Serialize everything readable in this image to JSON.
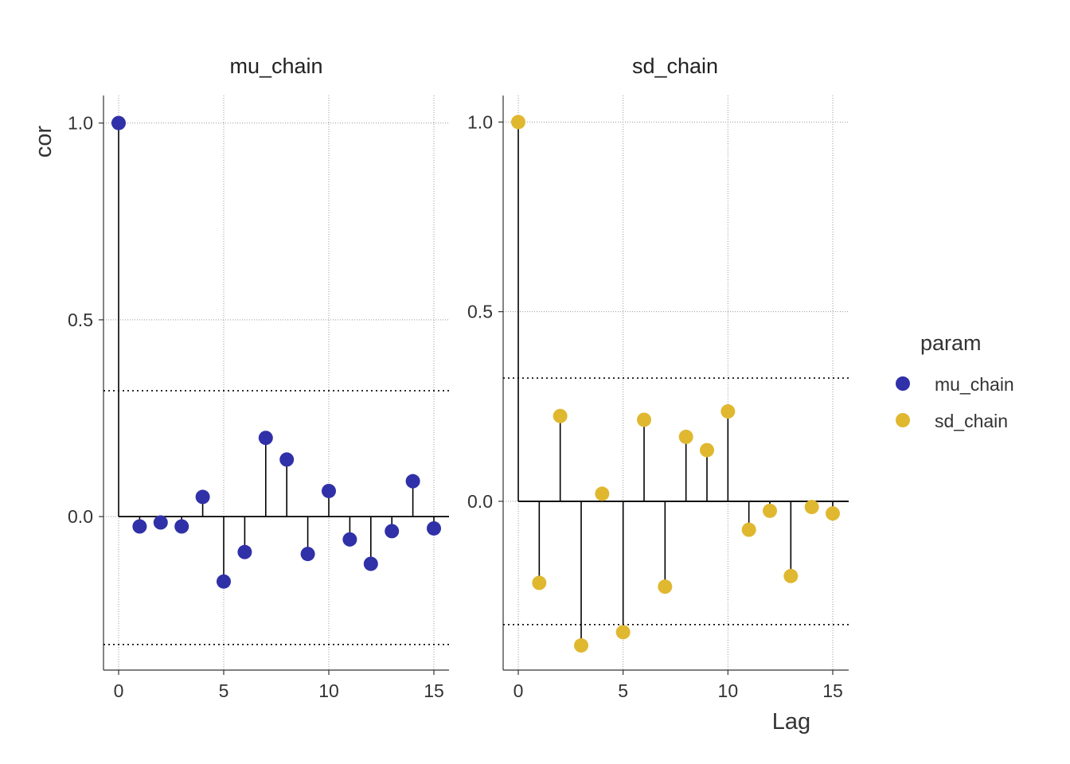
{
  "chart_data": {
    "type": "scatter",
    "subtype": "acf-lollipop",
    "xlabel": "Lag",
    "ylabel": "cor",
    "x_ticks": [
      "0",
      "5",
      "10",
      "15"
    ],
    "y_ticks": [
      "0.0",
      "0.5",
      "1.0"
    ],
    "x": [
      0,
      1,
      2,
      3,
      4,
      5,
      6,
      7,
      8,
      9,
      10,
      11,
      12,
      13,
      14,
      15
    ],
    "legend": {
      "title": "param",
      "position": "right",
      "entries": [
        {
          "label": "mu_chain",
          "color": "#3030A8"
        },
        {
          "label": "sd_chain",
          "color": "#E0B830"
        }
      ]
    },
    "facets": [
      {
        "strip": "mu_chain",
        "color": "#3030A8",
        "values": [
          1.0,
          -0.025,
          -0.015,
          -0.025,
          0.05,
          -0.165,
          -0.09,
          0.2,
          0.145,
          -0.095,
          0.065,
          -0.058,
          -0.12,
          -0.037,
          0.09,
          -0.03
        ],
        "ylim": [
          -0.39,
          1.07
        ],
        "conf_band": [
          0.32,
          -0.325
        ]
      },
      {
        "strip": "sd_chain",
        "color": "#E0B830",
        "values": [
          1.0,
          -0.215,
          0.225,
          -0.38,
          0.02,
          -0.345,
          0.215,
          -0.225,
          0.17,
          0.135,
          0.237,
          -0.075,
          -0.025,
          -0.197,
          -0.015,
          -0.032
        ],
        "ylim": [
          -0.445,
          1.07
        ],
        "conf_band": [
          0.325,
          -0.325
        ]
      }
    ],
    "grid": true
  }
}
